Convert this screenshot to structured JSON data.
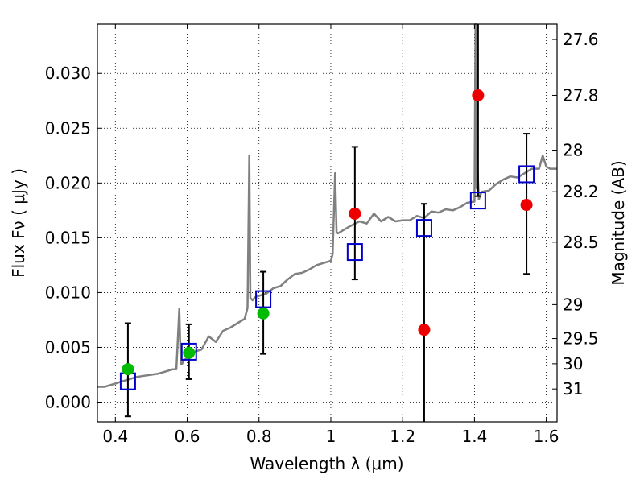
{
  "chart_data": {
    "type": "scatter",
    "xlabel": "Wavelength  λ (μm)",
    "ylabel": "Flux  Fν  ( μJy )",
    "y2label": "Magnitude (AB)",
    "xlim": [
      0.35,
      1.63
    ],
    "ylim": [
      -0.0018,
      0.0345
    ],
    "x_ticks": [
      0.4,
      0.6,
      0.8,
      1.0,
      1.2,
      1.4,
      1.6
    ],
    "x_tick_labels": [
      "0.4",
      "0.6",
      "0.8",
      "1",
      "1.2",
      "1.4",
      "1.6"
    ],
    "y_ticks": [
      0.0,
      0.005,
      0.01,
      0.015,
      0.02,
      0.025,
      0.03
    ],
    "y_tick_labels": [
      "0.000",
      "0.005",
      "0.010",
      "0.015",
      "0.020",
      "0.025",
      "0.030"
    ],
    "y2_tick_labels": [
      "27.6",
      "27.8",
      "28",
      "28.2",
      "28.5",
      "29",
      "29.5",
      "30",
      "31"
    ],
    "y2_tick_flux": [
      0.0331,
      0.028,
      0.023,
      0.0192,
      0.0146,
      0.0089,
      0.0058,
      0.0035,
      0.0012
    ],
    "grid": true,
    "colors": {
      "spectrum": "#808080",
      "model_box": "#0000cc",
      "green_points": "#00bb00",
      "red_points": "#ee0000",
      "errorbar": "#000000"
    },
    "series": [
      {
        "kind": "spectrum",
        "x": [
          0.35,
          0.37,
          0.4,
          0.42,
          0.44,
          0.46,
          0.48,
          0.5,
          0.52,
          0.54,
          0.56,
          0.57,
          0.578,
          0.582,
          0.586,
          0.59,
          0.62,
          0.64,
          0.66,
          0.68,
          0.7,
          0.72,
          0.74,
          0.76,
          0.768,
          0.773,
          0.776,
          0.782,
          0.79,
          0.8,
          0.82,
          0.84,
          0.86,
          0.88,
          0.9,
          0.92,
          0.94,
          0.96,
          0.98,
          1.0,
          1.005,
          1.012,
          1.016,
          1.02,
          1.03,
          1.05,
          1.08,
          1.1,
          1.12,
          1.14,
          1.16,
          1.18,
          1.2,
          1.22,
          1.24,
          1.26,
          1.28,
          1.3,
          1.32,
          1.34,
          1.36,
          1.38,
          1.4,
          1.403,
          1.406,
          1.409,
          1.412,
          1.42,
          1.44,
          1.46,
          1.48,
          1.5,
          1.52,
          1.54,
          1.56,
          1.58,
          1.59,
          1.6,
          1.61,
          1.63
        ],
        "y": [
          0.0014,
          0.0014,
          0.0017,
          0.0019,
          0.0021,
          0.0023,
          0.0024,
          0.0025,
          0.0026,
          0.0028,
          0.003,
          0.003,
          0.0085,
          0.0035,
          0.0035,
          0.0038,
          0.0046,
          0.0048,
          0.006,
          0.0055,
          0.0065,
          0.0068,
          0.0072,
          0.0076,
          0.0086,
          0.0225,
          0.0095,
          0.0093,
          0.0096,
          0.0097,
          0.0099,
          0.0104,
          0.0106,
          0.0112,
          0.0117,
          0.0118,
          0.0121,
          0.0125,
          0.0127,
          0.0129,
          0.0135,
          0.0209,
          0.0155,
          0.0154,
          0.0156,
          0.016,
          0.0165,
          0.0163,
          0.0172,
          0.0165,
          0.0169,
          0.0165,
          0.0166,
          0.0166,
          0.017,
          0.0168,
          0.0174,
          0.0173,
          0.0176,
          0.0175,
          0.0178,
          0.0182,
          0.0183,
          0.0345,
          0.0195,
          0.021,
          0.0185,
          0.0192,
          0.0193,
          0.0199,
          0.0203,
          0.0206,
          0.0205,
          0.0209,
          0.0213,
          0.0213,
          0.0225,
          0.0215,
          0.0213,
          0.0213
        ]
      },
      {
        "kind": "model_boxes",
        "x": [
          0.435,
          0.605,
          0.812,
          1.067,
          1.26,
          1.41,
          1.545
        ],
        "y": [
          0.0019,
          0.0046,
          0.0094,
          0.0137,
          0.0159,
          0.0184,
          0.0208
        ]
      },
      {
        "kind": "green_points",
        "x": [
          0.435,
          0.605,
          0.812
        ],
        "y": [
          0.003,
          0.0045,
          0.0081
        ],
        "yerr_low": [
          0.0043,
          0.0024,
          0.0037
        ],
        "yerr_high": [
          0.0042,
          0.0026,
          0.0038
        ]
      },
      {
        "kind": "red_points",
        "x": [
          1.067,
          1.26,
          1.41,
          1.545
        ],
        "y": [
          0.0172,
          0.0066,
          0.028,
          0.018
        ],
        "yerr_low": [
          0.006,
          0.0084,
          0.0092,
          0.0063
        ],
        "yerr_high": [
          0.0061,
          0.0115,
          0.0065,
          0.0065
        ]
      }
    ]
  }
}
